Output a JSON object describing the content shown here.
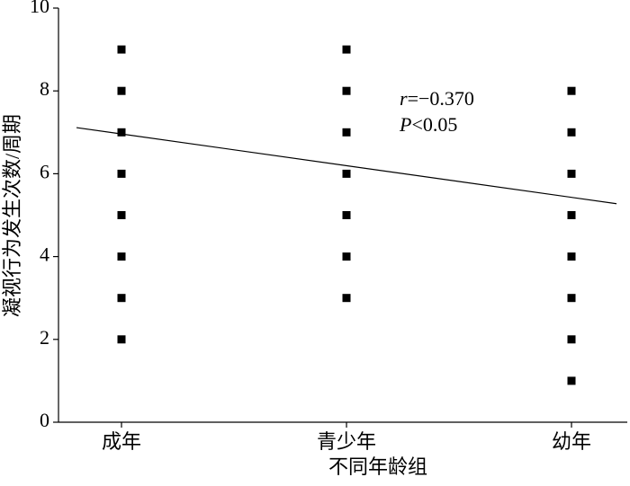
{
  "chart_data": {
    "type": "scatter",
    "xlabel": "不同年龄组",
    "ylabel": "凝视行为发生次数/周期",
    "categories": [
      "成年",
      "青少年",
      "幼年"
    ],
    "values": [
      [
        2,
        3,
        4,
        5,
        6,
        7,
        8,
        9
      ],
      [
        3,
        4,
        5,
        6,
        7,
        8,
        9
      ],
      [
        1,
        2,
        3,
        4,
        5,
        6,
        7,
        8
      ]
    ],
    "color": "#000000",
    "trend_values": [
      6.96,
      5.43
    ],
    "annotations": [
      [
        "r",
        "=−0.370"
      ],
      [
        "P",
        "<0.05"
      ]
    ],
    "ylim": [
      0,
      10
    ],
    "yticks": [
      0,
      2,
      4,
      6,
      8,
      10
    ]
  }
}
